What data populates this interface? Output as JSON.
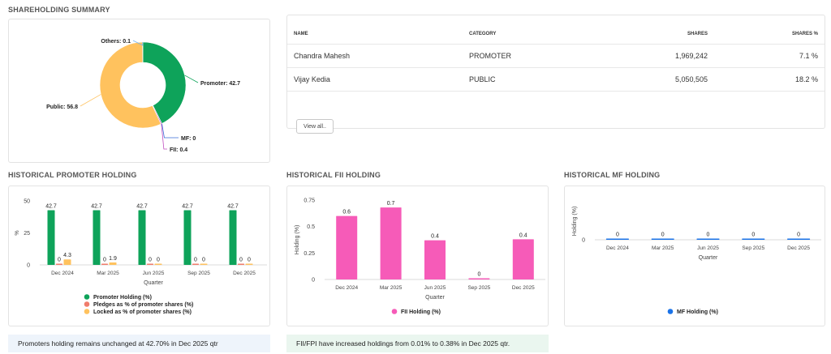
{
  "shareholding_summary": {
    "title": "SHAREHOLDING SUMMARY",
    "colors": {
      "Promoter": "#0ea35a",
      "Public": "#ffc25e",
      "Others": "#6fb3f0",
      "MF": "#3a6fd8",
      "FII": "#c04ec0"
    }
  },
  "shareholders_table": {
    "headers": [
      "NAME",
      "CATEGORY",
      "SHARES",
      "SHARES %"
    ],
    "rows": [
      [
        "Chandra Mahesh",
        "PROMOTER",
        "1,969,242",
        "7.1 %"
      ],
      [
        "Vijay Kedia",
        "PUBLIC",
        "5,050,505",
        "18.2 %"
      ]
    ],
    "view_all_label": "View all.."
  },
  "promoter_section": {
    "title": "HISTORICAL PROMOTER HOLDING",
    "note": "Promoters holding remains unchanged at 42.70% in Dec 2025 qtr"
  },
  "fii_section": {
    "title": "HISTORICAL FII HOLDING",
    "note": "FII/FPI have increased holdings from 0.01% to 0.38% in Dec 2025 qtr."
  },
  "mf_section": {
    "title": "HISTORICAL MF HOLDING"
  },
  "chart_data": [
    {
      "type": "pie",
      "style": "donut",
      "slices": [
        {
          "label": "Promoter: 42.7",
          "name": "Promoter",
          "value": 42.7
        },
        {
          "label": "MF: 0",
          "name": "MF",
          "value": 0
        },
        {
          "label": "FII: 0.4",
          "name": "FII",
          "value": 0.4
        },
        {
          "label": "Public: 56.8",
          "name": "Public",
          "value": 56.8
        },
        {
          "label": "Others: 0.1",
          "name": "Others",
          "value": 0.1
        }
      ]
    },
    {
      "type": "bar",
      "categories": [
        "Dec 2024",
        "Mar 2025",
        "Jun 2025",
        "Sep 2025",
        "Dec 2025"
      ],
      "xlabel": "Quarter",
      "ylabel": "%",
      "ylim": [
        0,
        50
      ],
      "yticks": [
        0,
        25,
        50
      ],
      "series": [
        {
          "name": "Promoter Holding (%)",
          "color": "#0ea35a",
          "values": [
            42.7,
            42.7,
            42.7,
            42.7,
            42.7
          ],
          "labels": [
            "42.7",
            "42.7",
            "42.7",
            "42.7",
            "42.7"
          ]
        },
        {
          "name": "Pledges as % of promoter shares (%)",
          "color": "#f07c6c",
          "values": [
            0,
            0,
            0,
            0,
            0
          ],
          "labels": [
            "0",
            "0",
            "0",
            "0",
            "0"
          ]
        },
        {
          "name": "Locked as % of promoter shares (%)",
          "color": "#ffc25e",
          "values": [
            4.3,
            1.9,
            0,
            0,
            0
          ],
          "labels": [
            "4.3",
            "1.9",
            "0",
            "0",
            "0"
          ]
        }
      ],
      "legend": "bottom"
    },
    {
      "type": "bar",
      "categories": [
        "Dec 2024",
        "Mar 2025",
        "Jun 2025",
        "Sep 2025",
        "Dec 2025"
      ],
      "xlabel": "Quarter",
      "ylabel": "Holding (%)",
      "ylim": [
        0,
        0.75
      ],
      "yticks": [
        "0",
        "0.25",
        "0.5",
        "0.75"
      ],
      "series": [
        {
          "name": "FII Holding (%)",
          "color": "#f65bb8",
          "values": [
            0.6,
            0.68,
            0.37,
            0.01,
            0.38
          ],
          "labels": [
            "0.6",
            "0.7",
            "0.4",
            "0",
            "0.4"
          ]
        }
      ],
      "legend": "bottom"
    },
    {
      "type": "bar",
      "categories": [
        "Dec 2024",
        "Mar 2025",
        "Jun 2025",
        "Sep 2025",
        "Dec 2025"
      ],
      "xlabel": "Quarter",
      "ylabel": "Holding (%)",
      "yticks": [
        "0"
      ],
      "series": [
        {
          "name": "MF Holding (%)",
          "color": "#1a73e8",
          "values": [
            0,
            0,
            0,
            0,
            0
          ],
          "labels": [
            "0",
            "0",
            "0",
            "0",
            "0"
          ]
        }
      ],
      "legend": "bottom"
    }
  ]
}
